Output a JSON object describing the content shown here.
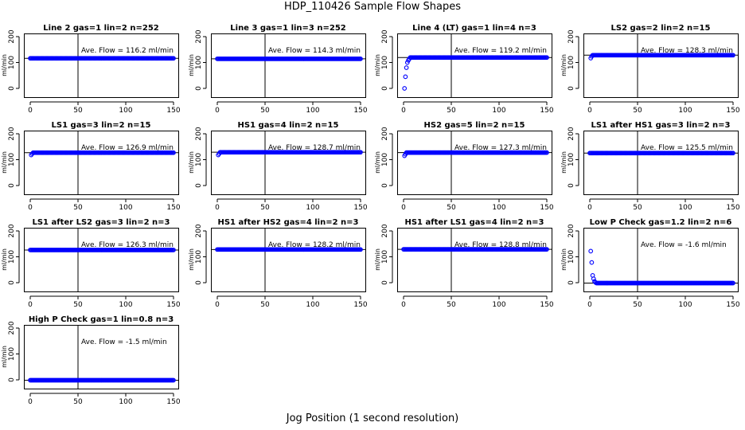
{
  "page": {
    "title": "HDP_110426  Sample Flow Shapes",
    "xlabel": "Jog Position (1 second resolution)"
  },
  "colors": {
    "points": "#0000ff",
    "lines": "#000000",
    "background": "#ffffff"
  },
  "chart_data": [
    {
      "type": "scatter",
      "title": "Line 2 gas=1 lin=2 n=252",
      "ylabel": "ml/min",
      "annotation": "Ave. Flow =  116.2  ml/min",
      "mean": 116.2,
      "xlim": [
        0,
        150
      ],
      "ylim": [
        0,
        200
      ],
      "xticks": [
        0,
        50,
        100,
        150
      ],
      "yticks": [
        0,
        100,
        200
      ],
      "vline": 50,
      "start": [],
      "plateau": 116.2,
      "plateau_from": 0
    },
    {
      "type": "scatter",
      "title": "Line 3 gas=1 lin=3 n=252",
      "ylabel": "ml/min",
      "annotation": "Ave. Flow =  114.3  ml/min",
      "mean": 114.3,
      "xlim": [
        0,
        150
      ],
      "ylim": [
        0,
        200
      ],
      "xticks": [
        0,
        50,
        100,
        150
      ],
      "yticks": [
        0,
        100,
        200
      ],
      "vline": 50,
      "start": [],
      "plateau": 114.3,
      "plateau_from": 0
    },
    {
      "type": "scatter",
      "title": "Line 4 (LT) gas=1 lin=4 n=3",
      "ylabel": "ml/min",
      "annotation": "Ave. Flow =  119.2  ml/min",
      "mean": 119.2,
      "xlim": [
        0,
        150
      ],
      "ylim": [
        0,
        200
      ],
      "xticks": [
        0,
        50,
        100,
        150
      ],
      "yticks": [
        0,
        100,
        200
      ],
      "vline": 50,
      "start": [
        [
          1,
          0
        ],
        [
          2,
          45
        ],
        [
          3,
          80
        ],
        [
          4,
          100
        ],
        [
          5,
          108
        ],
        [
          6,
          114
        ]
      ],
      "plateau": 119.2,
      "plateau_from": 7
    },
    {
      "type": "scatter",
      "title": "LS2 gas=2 lin=2 n=15",
      "ylabel": "ml/min",
      "annotation": "Ave. Flow =  128.3  ml/min",
      "mean": 128.3,
      "xlim": [
        0,
        150
      ],
      "ylim": [
        0,
        200
      ],
      "xticks": [
        0,
        50,
        100,
        150
      ],
      "yticks": [
        0,
        100,
        200
      ],
      "vline": 50,
      "start": [
        [
          1,
          117
        ],
        [
          2,
          124
        ]
      ],
      "plateau": 128.3,
      "plateau_from": 3
    },
    {
      "type": "scatter",
      "title": "LS1 gas=3 lin=2 n=15",
      "ylabel": "ml/min",
      "annotation": "Ave. Flow =  126.9  ml/min",
      "mean": 126.9,
      "xlim": [
        0,
        150
      ],
      "ylim": [
        0,
        200
      ],
      "xticks": [
        0,
        50,
        100,
        150
      ],
      "yticks": [
        0,
        100,
        200
      ],
      "vline": 50,
      "start": [
        [
          1,
          118
        ],
        [
          2,
          123
        ]
      ],
      "plateau": 126.9,
      "plateau_from": 3
    },
    {
      "type": "scatter",
      "title": "HS1 gas=4 lin=2 n=15",
      "ylabel": "ml/min",
      "annotation": "Ave. Flow =  128.7  ml/min",
      "mean": 128.7,
      "xlim": [
        0,
        150
      ],
      "ylim": [
        0,
        200
      ],
      "xticks": [
        0,
        50,
        100,
        150
      ],
      "yticks": [
        0,
        100,
        200
      ],
      "vline": 50,
      "start": [
        [
          1,
          118
        ],
        [
          2,
          123
        ]
      ],
      "plateau": 128.7,
      "plateau_from": 3
    },
    {
      "type": "scatter",
      "title": "HS2 gas=5 lin=2 n=15",
      "ylabel": "ml/min",
      "annotation": "Ave. Flow =  127.3  ml/min",
      "mean": 127.3,
      "xlim": [
        0,
        150
      ],
      "ylim": [
        0,
        200
      ],
      "xticks": [
        0,
        50,
        100,
        150
      ],
      "yticks": [
        0,
        100,
        200
      ],
      "vline": 50,
      "start": [
        [
          1,
          115
        ],
        [
          2,
          121
        ]
      ],
      "plateau": 127.3,
      "plateau_from": 3
    },
    {
      "type": "scatter",
      "title": "LS1 after HS1 gas=3 lin=2 n=3",
      "ylabel": "ml/min",
      "annotation": "Ave. Flow =  125.5  ml/min",
      "mean": 125.5,
      "xlim": [
        0,
        150
      ],
      "ylim": [
        0,
        200
      ],
      "xticks": [
        0,
        50,
        100,
        150
      ],
      "yticks": [
        0,
        100,
        200
      ],
      "vline": 50,
      "start": [],
      "plateau": 125.5,
      "plateau_from": 0
    },
    {
      "type": "scatter",
      "title": "LS1 after LS2 gas=3 lin=2 n=3",
      "ylabel": "ml/min",
      "annotation": "Ave. Flow =  126.3  ml/min",
      "mean": 126.3,
      "xlim": [
        0,
        150
      ],
      "ylim": [
        0,
        200
      ],
      "xticks": [
        0,
        50,
        100,
        150
      ],
      "yticks": [
        0,
        100,
        200
      ],
      "vline": 50,
      "start": [],
      "plateau": 126.3,
      "plateau_from": 0
    },
    {
      "type": "scatter",
      "title": "HS1 after HS2 gas=4 lin=2 n=3",
      "ylabel": "ml/min",
      "annotation": "Ave. Flow =  128.2  ml/min",
      "mean": 128.2,
      "xlim": [
        0,
        150
      ],
      "ylim": [
        0,
        200
      ],
      "xticks": [
        0,
        50,
        100,
        150
      ],
      "yticks": [
        0,
        100,
        200
      ],
      "vline": 50,
      "start": [],
      "plateau": 128.2,
      "plateau_from": 0
    },
    {
      "type": "scatter",
      "title": "HS1 after LS1 gas=4 lin=2 n=3",
      "ylabel": "ml/min",
      "annotation": "Ave. Flow =  128.8  ml/min",
      "mean": 128.8,
      "xlim": [
        0,
        150
      ],
      "ylim": [
        0,
        200
      ],
      "xticks": [
        0,
        50,
        100,
        150
      ],
      "yticks": [
        0,
        100,
        200
      ],
      "vline": 50,
      "start": [],
      "plateau": 128.8,
      "plateau_from": 0
    },
    {
      "type": "scatter",
      "title": "Low P Check gas=1.2 lin=2 n=6",
      "ylabel": "ml/min",
      "annotation": "Ave. Flow =  -1.6  ml/min",
      "mean": -1.6,
      "xlim": [
        0,
        150
      ],
      "ylim": [
        0,
        200
      ],
      "xticks": [
        0,
        50,
        100,
        150
      ],
      "yticks": [
        0,
        100,
        200
      ],
      "vline": 50,
      "start": [
        [
          1,
          122
        ],
        [
          2,
          78
        ],
        [
          3,
          28
        ],
        [
          4,
          15
        ],
        [
          5,
          5
        ],
        [
          6,
          1
        ]
      ],
      "plateau": -1.6,
      "plateau_from": 7
    },
    {
      "type": "scatter",
      "title": "High P Check gas=1 lin=0.8 n=3",
      "ylabel": "ml/min",
      "annotation": "Ave. Flow =  -1.5  ml/min",
      "mean": -1.5,
      "xlim": [
        0,
        150
      ],
      "ylim": [
        0,
        200
      ],
      "xticks": [
        0,
        50,
        100,
        150
      ],
      "yticks": [
        0,
        100,
        200
      ],
      "vline": 50,
      "start": [],
      "plateau": -1.5,
      "plateau_from": 0
    }
  ]
}
